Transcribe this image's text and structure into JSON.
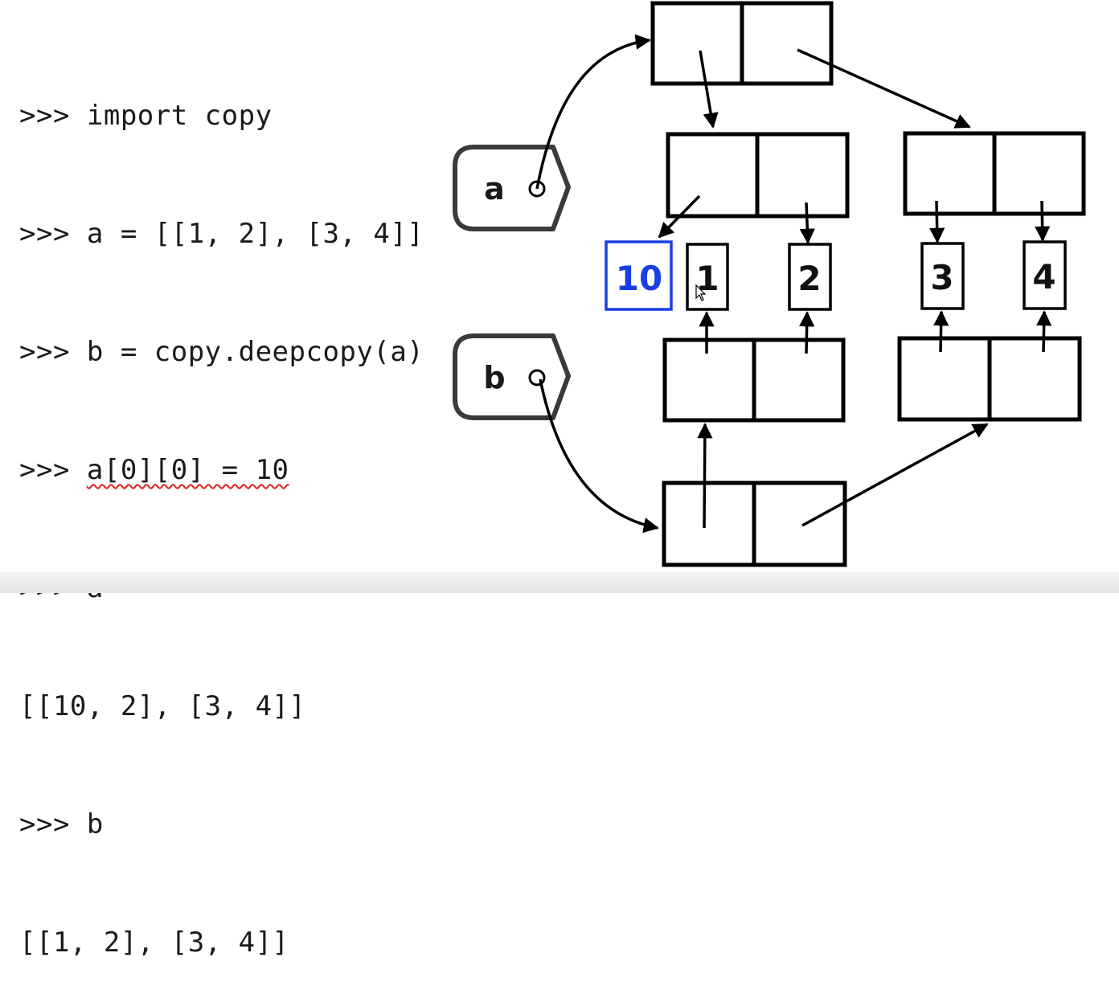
{
  "code_lines": [
    ">>> import copy",
    ">>> a = [[1, 2], [3, 4]]",
    ">>> b = copy.deepcopy(a)",
    ">>> ",
    ">>> a",
    "[[10, 2], [3, 4]]",
    ">>> b",
    "[[1, 2], [3, 4]]"
  ],
  "highlighted_statement": "a[0][0] = 10",
  "highlight_color": "#e02020",
  "diagram": {
    "tag_a": "a",
    "tag_b": "b",
    "values": [
      "10",
      "1",
      "2",
      "3",
      "4"
    ],
    "new_value_color": "#1a3fe0"
  }
}
